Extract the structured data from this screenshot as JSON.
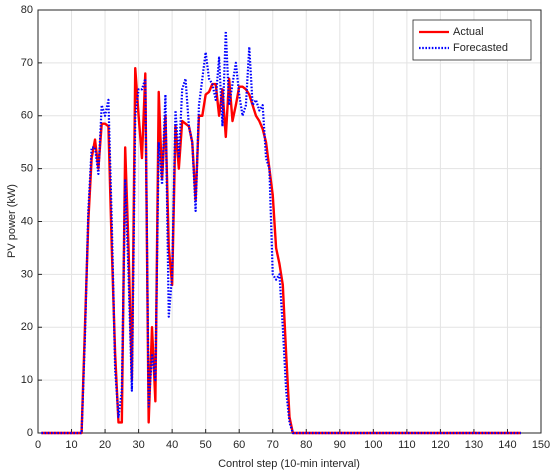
{
  "chart_data": {
    "type": "line",
    "xlabel": "Control step (10-min interval)",
    "ylabel": "PV power (kW)",
    "x": [
      1,
      13,
      14,
      15,
      16,
      17,
      18,
      19,
      20,
      21,
      22,
      23,
      24,
      25,
      26,
      27,
      28,
      29,
      30,
      31,
      32,
      33,
      34,
      35,
      36,
      37,
      38,
      39,
      40,
      41,
      42,
      43,
      44,
      45,
      46,
      47,
      48,
      49,
      50,
      51,
      52,
      53,
      54,
      55,
      56,
      57,
      58,
      59,
      60,
      61,
      62,
      63,
      64,
      65,
      66,
      67,
      68,
      69,
      70,
      71,
      72,
      73,
      74,
      75,
      76,
      77,
      78,
      144
    ],
    "series": [
      {
        "name": "Actual",
        "color": "#ff0000",
        "linestyle": "solid",
        "values": [
          0,
          0,
          20,
          40,
          52,
          55.5,
          50,
          58.5,
          58.5,
          58,
          35,
          15,
          2,
          2,
          54,
          35,
          10,
          69,
          60,
          52,
          68,
          2,
          20,
          6,
          64.5,
          48,
          60,
          35,
          28,
          58,
          50,
          59,
          58.5,
          58,
          55,
          44,
          60,
          60,
          64,
          64.5,
          66,
          66,
          60,
          65,
          56,
          67,
          59,
          62,
          65.5,
          65.5,
          65,
          64,
          62,
          60,
          59,
          57.5,
          55,
          50,
          45,
          35,
          32,
          28,
          15,
          3,
          0,
          0,
          0,
          0
        ]
      },
      {
        "name": "Forecasted",
        "color": "#0000ff",
        "linestyle": "dotted",
        "values": [
          0,
          0,
          18,
          42,
          54,
          54,
          49,
          62,
          60,
          63,
          40,
          12,
          3,
          8,
          48,
          30,
          8,
          60,
          65,
          65,
          67,
          5,
          15,
          10,
          55,
          47,
          64,
          22,
          30,
          61,
          52,
          65,
          67,
          58,
          55,
          42,
          62,
          67,
          72,
          67,
          66,
          63,
          71,
          58,
          76,
          62,
          66,
          70,
          64,
          60,
          62,
          73,
          62,
          63,
          61,
          62,
          52,
          50,
          30,
          29,
          30,
          20,
          8,
          2,
          0,
          0,
          0,
          0
        ]
      }
    ],
    "xlim": [
      0,
      150
    ],
    "xticks": [
      0,
      10,
      20,
      30,
      40,
      50,
      60,
      70,
      80,
      90,
      100,
      110,
      120,
      130,
      140,
      150
    ],
    "ylim": [
      0,
      80
    ],
    "yticks": [
      0,
      10,
      20,
      30,
      40,
      50,
      60,
      70,
      80
    ],
    "grid": true,
    "legend": "upper right"
  }
}
